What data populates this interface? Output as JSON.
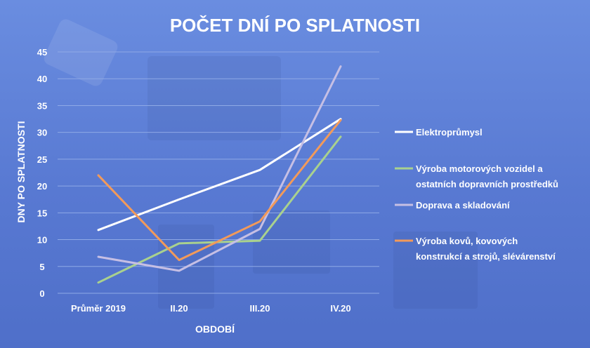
{
  "chart_data": {
    "type": "line",
    "title": "POČET DNÍ PO SPLATNOSTI",
    "xlabel": "OBDOBÍ",
    "ylabel": "DNY PO SPLATNOSTI",
    "categories": [
      "Průměr 2019",
      "II.20",
      "III.20",
      "IV.20"
    ],
    "ylim": [
      0,
      45
    ],
    "yticks": [
      0,
      5,
      10,
      15,
      20,
      25,
      30,
      35,
      40,
      45
    ],
    "grid": true,
    "legend_position": "right",
    "series": [
      {
        "name": "Elektroprůmysl",
        "values": [
          11.8,
          17.5,
          23,
          32.5
        ],
        "color": "#ffffff"
      },
      {
        "name": "Výroba motorových vozidel a ostatních dopravních prostředků",
        "name_lines": [
          "Výroba motorových vozidel a",
          "ostatních dopravních prostředků"
        ],
        "values": [
          2,
          9.3,
          9.8,
          29.2
        ],
        "color": "#a9d18e"
      },
      {
        "name": "Doprava a skladování",
        "name_lines": [
          "Doprava a skladování"
        ],
        "values": [
          6.8,
          4.2,
          12,
          42.3
        ],
        "color": "#c6bfe4"
      },
      {
        "name": "Výroba kovů, kovových konstrukcí a strojů, slévárenství",
        "name_lines": [
          "Výroba kovů, kovových",
          "konstrukcí a strojů, slévárenství"
        ],
        "values": [
          22,
          6.2,
          13.4,
          32.3
        ],
        "color": "#f29a5a"
      }
    ]
  }
}
